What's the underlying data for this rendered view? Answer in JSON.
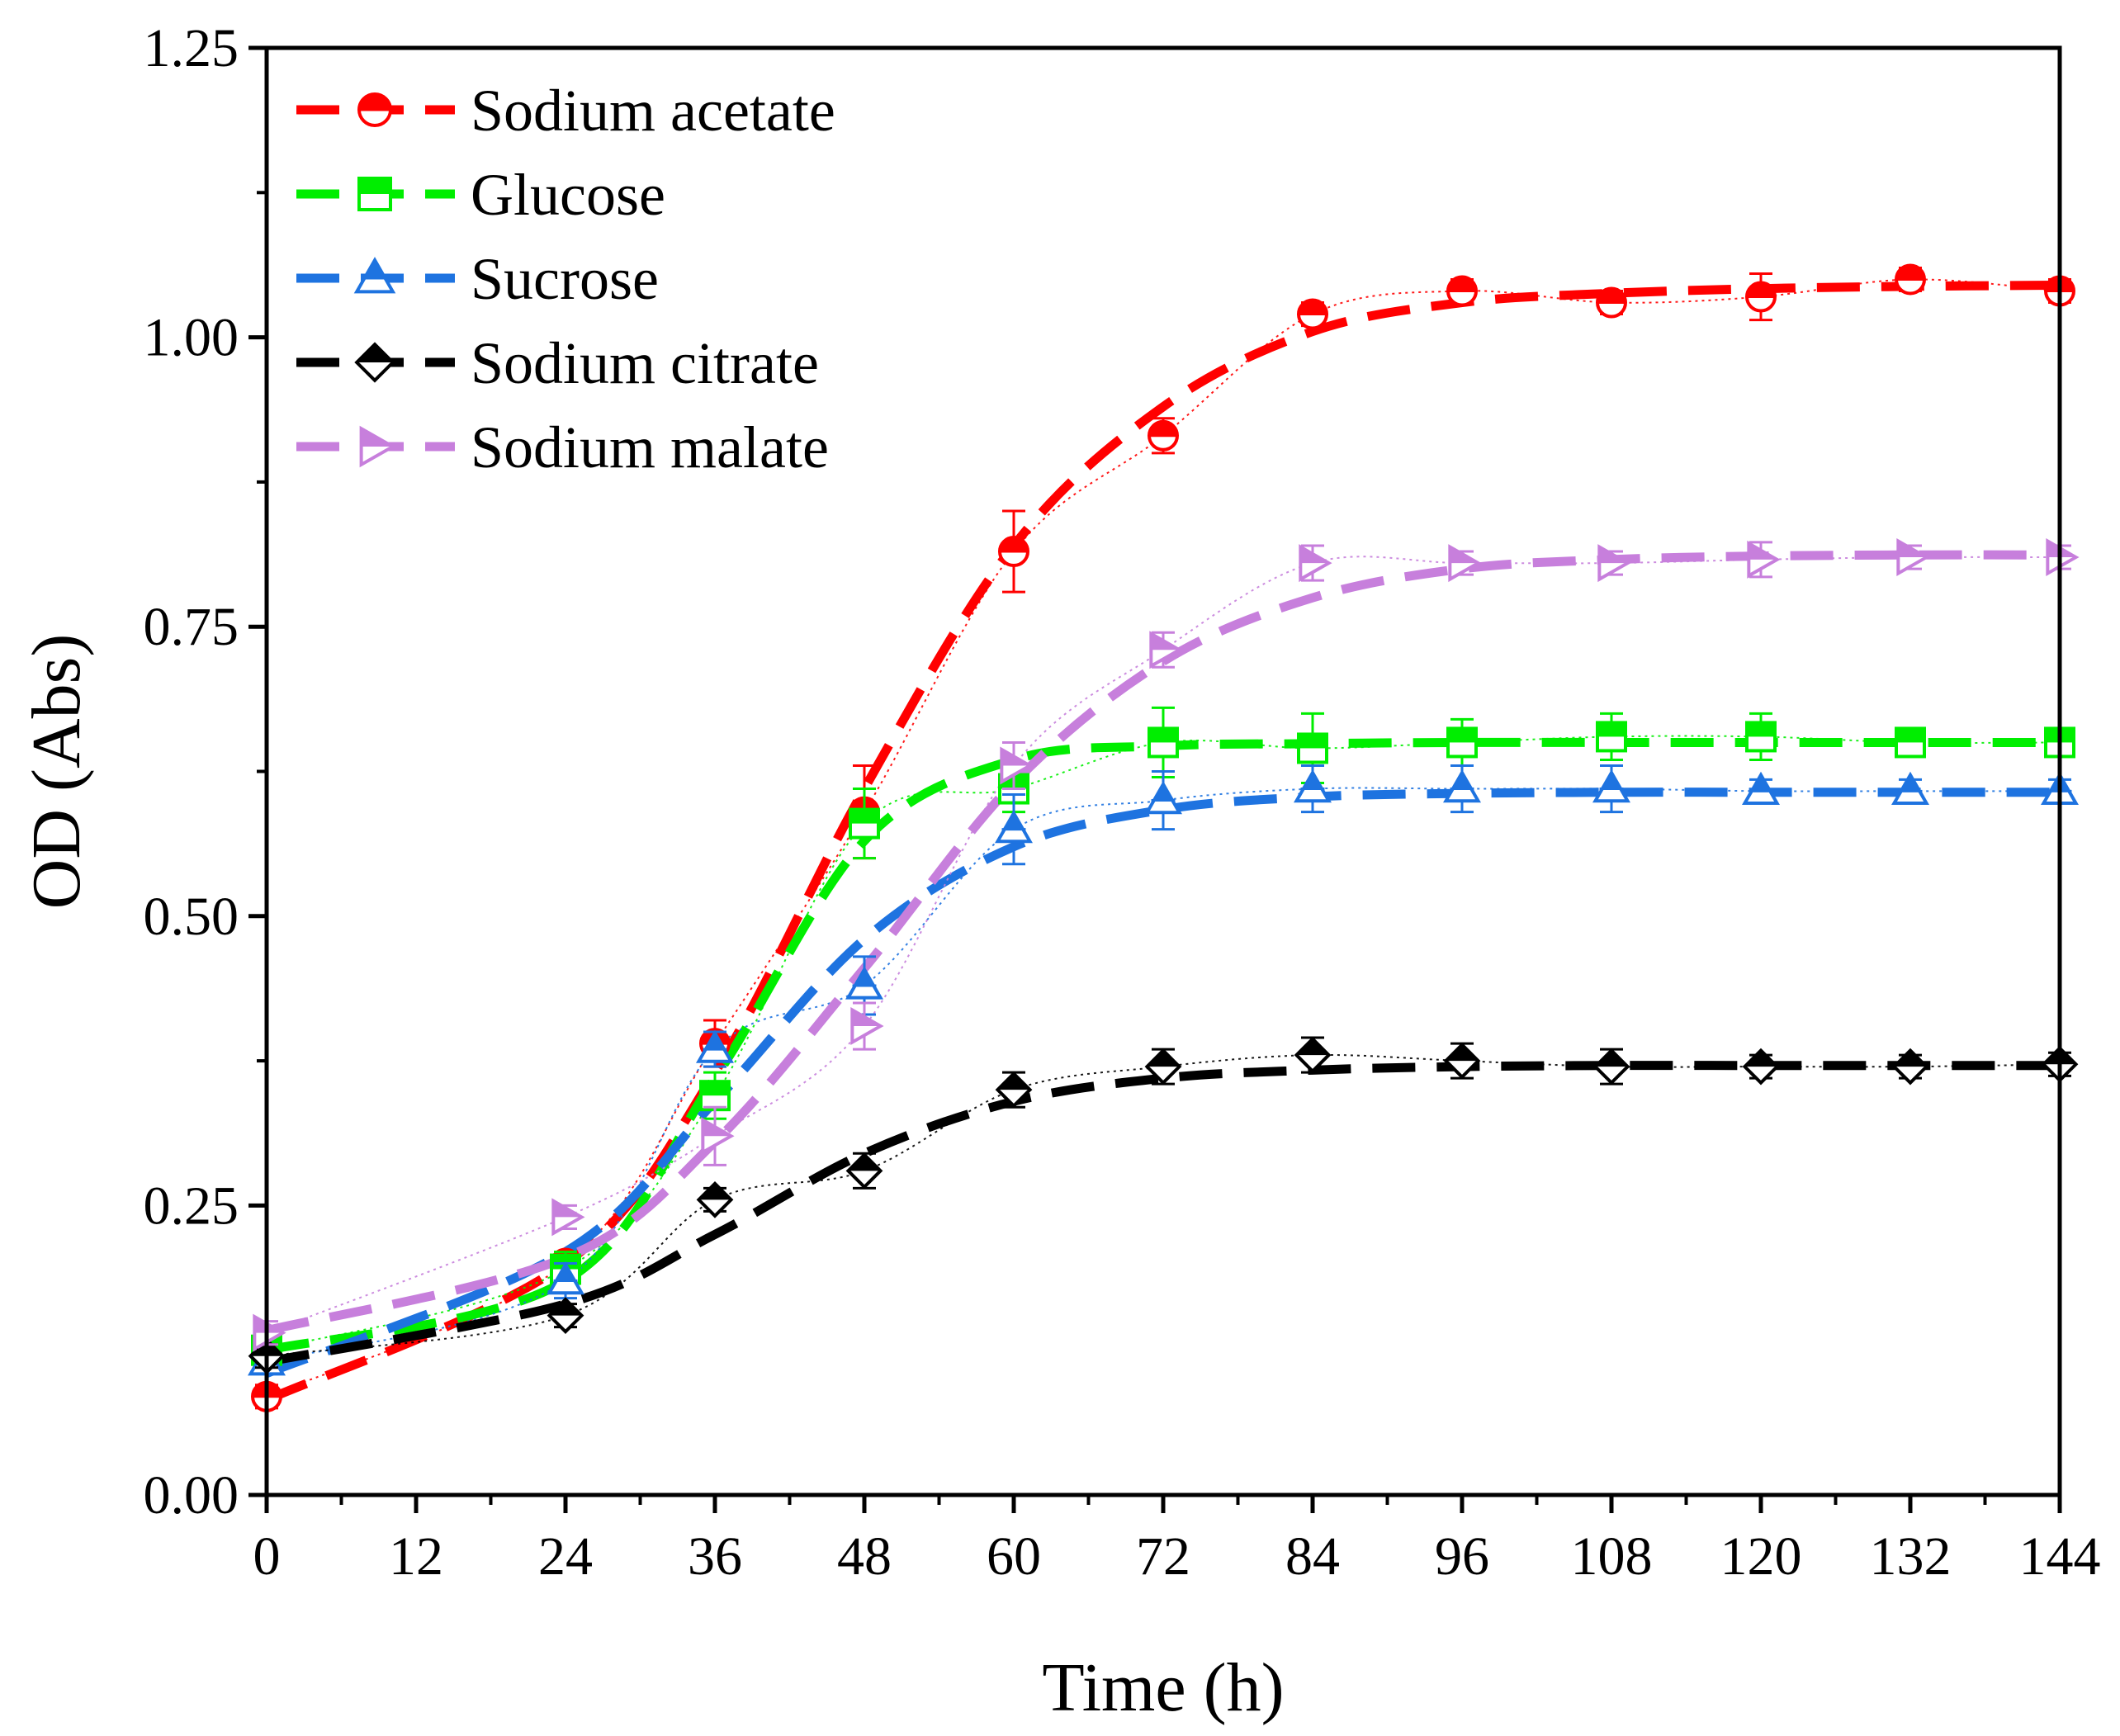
{
  "chart_data": {
    "type": "line",
    "title": "",
    "xlabel": "Time (h)",
    "ylabel": "OD (Abs)",
    "xlim": [
      0,
      144
    ],
    "ylim": [
      0,
      1.25
    ],
    "xticks": [
      0,
      12,
      24,
      36,
      48,
      60,
      72,
      84,
      96,
      108,
      120,
      132,
      144
    ],
    "yticks": [
      0.0,
      0.25,
      0.5,
      0.75,
      1.0,
      1.25
    ],
    "ytick_labels": [
      "0.00",
      "0.25",
      "0.50",
      "0.75",
      "1.00",
      "1.25"
    ],
    "legend_position": "top-left",
    "x": [
      0,
      24,
      36,
      48,
      60,
      72,
      84,
      96,
      108,
      120,
      132,
      144
    ],
    "series": [
      {
        "name": "Sodium acetate",
        "color": "#ff0000",
        "marker": "circle",
        "values": [
          0.085,
          0.2,
          0.39,
          0.59,
          0.815,
          0.915,
          1.02,
          1.04,
          1.03,
          1.035,
          1.05,
          1.04
        ],
        "errors": [
          0.01,
          0.01,
          0.02,
          0.04,
          0.035,
          0.015,
          0.01,
          0.01,
          0.01,
          0.02,
          0.01,
          0.01
        ],
        "fit": [
          0.082,
          0.2,
          0.365,
          0.61,
          0.82,
          0.94,
          1.005,
          1.03,
          1.038,
          1.042,
          1.044,
          1.045
        ]
      },
      {
        "name": "Glucose",
        "color": "#00ee00",
        "marker": "square",
        "values": [
          0.125,
          0.195,
          0.345,
          0.58,
          0.61,
          0.65,
          0.645,
          0.65,
          0.655,
          0.655,
          0.65,
          0.65
        ],
        "errors": [
          0.01,
          0.015,
          0.02,
          0.03,
          0.02,
          0.03,
          0.03,
          0.02,
          0.02,
          0.02,
          0.01,
          0.01
        ],
        "fit": [
          0.125,
          0.185,
          0.36,
          0.565,
          0.635,
          0.647,
          0.649,
          0.65,
          0.65,
          0.65,
          0.65,
          0.65
        ]
      },
      {
        "name": "Sucrose",
        "color": "#1e73e0",
        "marker": "triangle",
        "values": [
          0.115,
          0.185,
          0.385,
          0.44,
          0.575,
          0.6,
          0.61,
          0.61,
          0.61,
          0.608,
          0.608,
          0.608
        ],
        "errors": [
          0.01,
          0.015,
          0.015,
          0.025,
          0.03,
          0.025,
          0.02,
          0.02,
          0.02,
          0.01,
          0.01,
          0.01
        ],
        "fit": [
          0.105,
          0.21,
          0.34,
          0.48,
          0.56,
          0.592,
          0.603,
          0.606,
          0.607,
          0.607,
          0.607,
          0.607
        ]
      },
      {
        "name": "Sodium citrate",
        "color": "#000000",
        "marker": "diamond",
        "values": [
          0.12,
          0.155,
          0.255,
          0.28,
          0.35,
          0.37,
          0.38,
          0.375,
          0.37,
          0.37,
          0.37,
          0.372
        ],
        "errors": [
          0.01,
          0.01,
          0.01,
          0.015,
          0.015,
          0.015,
          0.015,
          0.015,
          0.015,
          0.01,
          0.01,
          0.01
        ],
        "fit": [
          0.115,
          0.165,
          0.225,
          0.295,
          0.34,
          0.36,
          0.367,
          0.37,
          0.371,
          0.371,
          0.371,
          0.371
        ]
      },
      {
        "name": "Sodium malate",
        "color": "#c77fdc",
        "marker": "triangle-right",
        "values": [
          0.14,
          0.24,
          0.31,
          0.405,
          0.63,
          0.73,
          0.805,
          0.805,
          0.805,
          0.808,
          0.81,
          0.81
        ],
        "errors": [
          0.01,
          0.01,
          0.025,
          0.02,
          0.02,
          0.015,
          0.015,
          0.01,
          0.01,
          0.015,
          0.01,
          0.01
        ],
        "fit": [
          0.142,
          0.205,
          0.305,
          0.455,
          0.615,
          0.72,
          0.775,
          0.8,
          0.808,
          0.811,
          0.812,
          0.812
        ]
      }
    ]
  }
}
